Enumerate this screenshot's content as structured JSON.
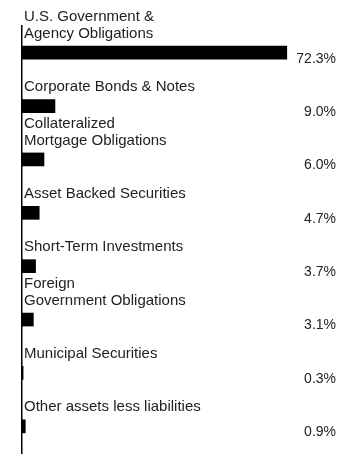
{
  "chart_data": {
    "type": "bar",
    "orientation": "horizontal",
    "categories": [
      [
        "U.S. Government &",
        "Agency Obligations"
      ],
      [
        "Corporate Bonds & Notes"
      ],
      [
        "Collateralized",
        "Mortgage Obligations"
      ],
      [
        "Asset Backed Securities"
      ],
      [
        "Short-Term Investments"
      ],
      [
        "Foreign",
        "Government Obligations"
      ],
      [
        "Municipal Securities"
      ],
      [
        "Other assets less liabilities"
      ]
    ],
    "values": [
      72.3,
      9.0,
      6.0,
      4.7,
      3.7,
      3.1,
      0.3,
      0.9
    ],
    "value_labels": [
      "72.3%",
      "9.0%",
      "6.0%",
      "4.7%",
      "3.7%",
      "3.1%",
      "0.3%",
      "0.9%"
    ],
    "data_labels": true,
    "color": "#000000",
    "xlim": [
      0,
      80
    ],
    "xticks": [
      0,
      80
    ],
    "grid": false,
    "tick_labels": false
  }
}
